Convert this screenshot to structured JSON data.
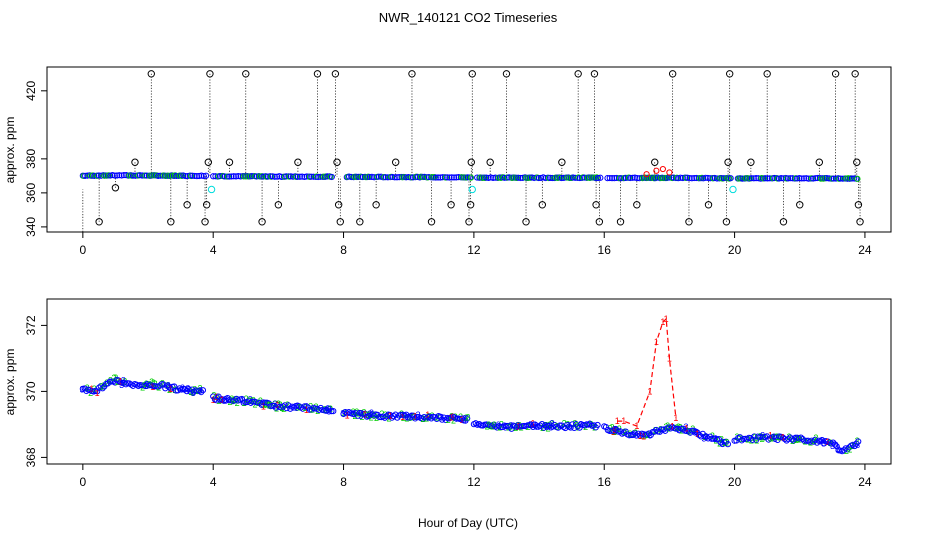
{
  "chart_data": {
    "title": "NWR_140121  CO2 Timeseries",
    "xlabel": "Hour of Day (UTC)",
    "x_ticks": [
      0,
      4,
      8,
      12,
      16,
      20,
      24
    ],
    "colors": {
      "black": "#000000",
      "red": "#ff0000",
      "green": "#00cc00",
      "blue": "#0000ff",
      "cyan": "#00dddd"
    },
    "panels": [
      {
        "type": "scatter",
        "ylabel": "approx. ppm",
        "xlim": [
          -1.1,
          24.8
        ],
        "ylim": [
          337,
          434
        ],
        "y_ticks": [
          340,
          360,
          380,
          420
        ],
        "baseline": [
          {
            "x": 0,
            "y": 370.1
          },
          {
            "x": 1,
            "y": 370.3
          },
          {
            "x": 2,
            "y": 370.2
          },
          {
            "x": 3.8,
            "y": 370.0
          },
          {
            "x": 4.0,
            "y": 369.8
          },
          {
            "x": 6,
            "y": 369.6
          },
          {
            "x": 7.7,
            "y": 369.5
          },
          {
            "x": 8.1,
            "y": 369.4
          },
          {
            "x": 10,
            "y": 369.3
          },
          {
            "x": 11.9,
            "y": 369.1
          },
          {
            "x": 12.1,
            "y": 369.0
          },
          {
            "x": 14,
            "y": 368.9
          },
          {
            "x": 15.9,
            "y": 368.9
          },
          {
            "x": 16.1,
            "y": 368.8
          },
          {
            "x": 17.4,
            "y": 368.8
          },
          {
            "x": 18,
            "y": 368.9
          },
          {
            "x": 19.9,
            "y": 368.5
          },
          {
            "x": 20.1,
            "y": 368.5
          },
          {
            "x": 22,
            "y": 368.6
          },
          {
            "x": 23.8,
            "y": 368.4
          }
        ],
        "spike_series": {
          "color": "red",
          "points": [
            [
              17.3,
              371
            ],
            [
              17.6,
              373
            ],
            [
              17.8,
              374
            ],
            [
              18.0,
              372
            ]
          ]
        },
        "outliers": [
          {
            "x": 0.5,
            "y": 343
          },
          {
            "x": 1.0,
            "y": 363
          },
          {
            "x": 1.6,
            "y": 378
          },
          {
            "x": 2.1,
            "y": 430
          },
          {
            "x": 2.7,
            "y": 343
          },
          {
            "x": 3.2,
            "y": 353
          },
          {
            "x": 3.75,
            "y": 343
          },
          {
            "x": 3.8,
            "y": 353
          },
          {
            "x": 3.85,
            "y": 378
          },
          {
            "x": 3.9,
            "y": 430
          },
          {
            "x": 4.5,
            "y": 378
          },
          {
            "x": 5.0,
            "y": 430
          },
          {
            "x": 5.5,
            "y": 343
          },
          {
            "x": 6.0,
            "y": 353
          },
          {
            "x": 6.6,
            "y": 378
          },
          {
            "x": 7.2,
            "y": 430
          },
          {
            "x": 7.75,
            "y": 430
          },
          {
            "x": 7.8,
            "y": 378
          },
          {
            "x": 7.85,
            "y": 353
          },
          {
            "x": 7.9,
            "y": 343
          },
          {
            "x": 8.5,
            "y": 343
          },
          {
            "x": 9.0,
            "y": 353
          },
          {
            "x": 9.6,
            "y": 378
          },
          {
            "x": 10.1,
            "y": 430
          },
          {
            "x": 10.7,
            "y": 343
          },
          {
            "x": 11.3,
            "y": 353
          },
          {
            "x": 11.85,
            "y": 343
          },
          {
            "x": 11.9,
            "y": 353
          },
          {
            "x": 11.92,
            "y": 378
          },
          {
            "x": 11.95,
            "y": 430
          },
          {
            "x": 12.5,
            "y": 378
          },
          {
            "x": 13.0,
            "y": 430
          },
          {
            "x": 13.6,
            "y": 343
          },
          {
            "x": 14.1,
            "y": 353
          },
          {
            "x": 14.7,
            "y": 378
          },
          {
            "x": 15.2,
            "y": 430
          },
          {
            "x": 15.7,
            "y": 430
          },
          {
            "x": 15.75,
            "y": 353
          },
          {
            "x": 15.85,
            "y": 343
          },
          {
            "x": 16.5,
            "y": 343
          },
          {
            "x": 17.0,
            "y": 353
          },
          {
            "x": 17.55,
            "y": 378
          },
          {
            "x": 18.1,
            "y": 430
          },
          {
            "x": 18.6,
            "y": 343
          },
          {
            "x": 19.2,
            "y": 353
          },
          {
            "x": 19.75,
            "y": 343
          },
          {
            "x": 19.8,
            "y": 378
          },
          {
            "x": 19.85,
            "y": 430
          },
          {
            "x": 20.5,
            "y": 378
          },
          {
            "x": 21.0,
            "y": 430
          },
          {
            "x": 21.5,
            "y": 343
          },
          {
            "x": 22.0,
            "y": 353
          },
          {
            "x": 22.6,
            "y": 378
          },
          {
            "x": 23.1,
            "y": 430
          },
          {
            "x": 23.7,
            "y": 430
          },
          {
            "x": 23.75,
            "y": 378
          },
          {
            "x": 23.8,
            "y": 353
          },
          {
            "x": 23.85,
            "y": 343
          }
        ],
        "cyan_points": [
          {
            "x": 3.95,
            "y": 362
          },
          {
            "x": 11.95,
            "y": 362
          },
          {
            "x": 19.95,
            "y": 362
          }
        ]
      },
      {
        "type": "scatter",
        "ylabel": "approx. ppm",
        "xlim": [
          -1.1,
          24.8
        ],
        "ylim": [
          367.8,
          372.8
        ],
        "y_ticks": [
          368,
          370,
          372
        ],
        "segments": [
          [
            {
              "x": 0.0,
              "y": 370.05
            },
            {
              "x": 0.4,
              "y": 370.0
            },
            {
              "x": 0.9,
              "y": 370.35
            },
            {
              "x": 1.3,
              "y": 370.25
            },
            {
              "x": 1.7,
              "y": 370.2
            },
            {
              "x": 2.3,
              "y": 370.2
            },
            {
              "x": 3.0,
              "y": 370.05
            },
            {
              "x": 3.7,
              "y": 370.0
            }
          ],
          [
            {
              "x": 4.0,
              "y": 369.8
            },
            {
              "x": 5.0,
              "y": 369.7
            },
            {
              "x": 6.0,
              "y": 369.55
            },
            {
              "x": 7.0,
              "y": 369.5
            },
            {
              "x": 7.7,
              "y": 369.4
            }
          ],
          [
            {
              "x": 8.0,
              "y": 369.35
            },
            {
              "x": 9.0,
              "y": 369.25
            },
            {
              "x": 10.0,
              "y": 369.25
            },
            {
              "x": 11.0,
              "y": 369.2
            },
            {
              "x": 11.8,
              "y": 369.15
            }
          ],
          [
            {
              "x": 12.0,
              "y": 369.05
            },
            {
              "x": 13.0,
              "y": 368.9
            },
            {
              "x": 14.0,
              "y": 368.95
            },
            {
              "x": 15.0,
              "y": 368.95
            },
            {
              "x": 15.8,
              "y": 368.95
            }
          ],
          [
            {
              "x": 16.0,
              "y": 368.9
            },
            {
              "x": 16.6,
              "y": 368.75
            },
            {
              "x": 17.2,
              "y": 368.65
            },
            {
              "x": 18.0,
              "y": 368.9
            },
            {
              "x": 18.5,
              "y": 368.85
            },
            {
              "x": 19.2,
              "y": 368.6
            },
            {
              "x": 19.8,
              "y": 368.4
            }
          ],
          [
            {
              "x": 20.0,
              "y": 368.55
            },
            {
              "x": 21.0,
              "y": 368.6
            },
            {
              "x": 22.0,
              "y": 368.55
            },
            {
              "x": 23.0,
              "y": 368.45
            },
            {
              "x": 23.3,
              "y": 368.15
            },
            {
              "x": 23.8,
              "y": 368.45
            }
          ]
        ],
        "spike": [
          {
            "x": 16.4,
            "y": 369.1
          },
          {
            "x": 16.6,
            "y": 369.1
          },
          {
            "x": 17.0,
            "y": 368.95
          },
          {
            "x": 17.4,
            "y": 370.0
          },
          {
            "x": 17.6,
            "y": 371.5
          },
          {
            "x": 17.8,
            "y": 372.1
          },
          {
            "x": 17.9,
            "y": 372.2
          },
          {
            "x": 18.0,
            "y": 371.0
          },
          {
            "x": 18.2,
            "y": 369.2
          }
        ]
      }
    ]
  }
}
